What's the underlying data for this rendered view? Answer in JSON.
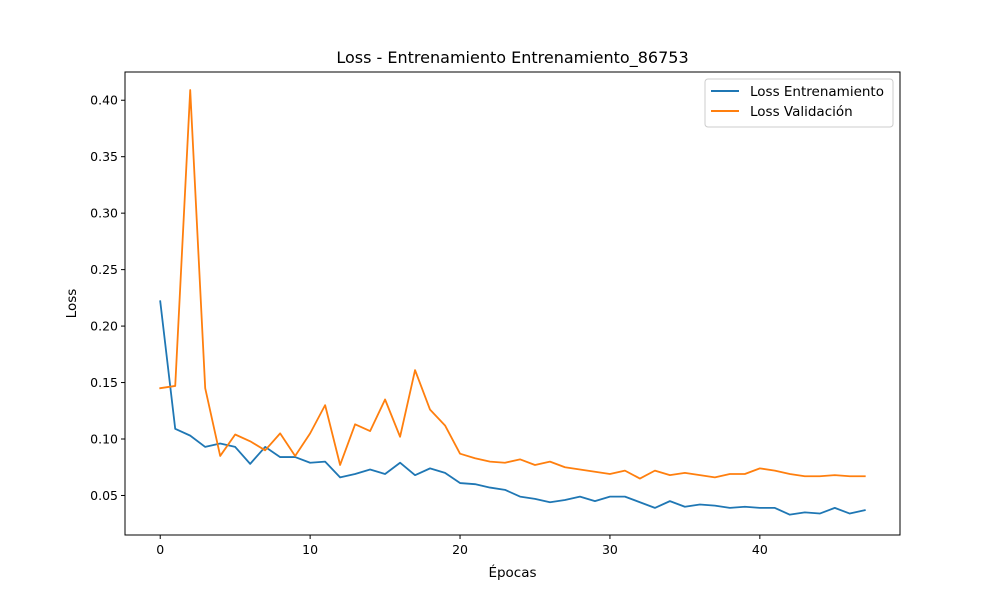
{
  "chart_data": {
    "type": "line",
    "title": "Loss - Entrenamiento Entrenamiento_86753",
    "xlabel": "Épocas",
    "ylabel": "Loss",
    "xlim": [
      -2.35,
      49.35
    ],
    "ylim": [
      0.015,
      0.425
    ],
    "xticks": [
      0,
      10,
      20,
      30,
      40
    ],
    "yticks": [
      0.05,
      0.1,
      0.15,
      0.2,
      0.25,
      0.3,
      0.35,
      0.4
    ],
    "ytick_labels": [
      "0.05",
      "0.10",
      "0.15",
      "0.20",
      "0.25",
      "0.30",
      "0.35",
      "0.40"
    ],
    "grid": false,
    "legend_position": "top-right",
    "series": [
      {
        "name": "Loss Entrenamiento",
        "color": "#1f77b4",
        "values": [
          0.222,
          0.109,
          0.103,
          0.093,
          0.096,
          0.093,
          0.078,
          0.093,
          0.084,
          0.084,
          0.079,
          0.08,
          0.066,
          0.069,
          0.073,
          0.069,
          0.079,
          0.068,
          0.074,
          0.07,
          0.061,
          0.06,
          0.057,
          0.055,
          0.049,
          0.047,
          0.044,
          0.046,
          0.049,
          0.045,
          0.049,
          0.049,
          0.044,
          0.039,
          0.045,
          0.04,
          0.042,
          0.041,
          0.039,
          0.04,
          0.039,
          0.039,
          0.033,
          0.035,
          0.034,
          0.039,
          0.034,
          0.037
        ]
      },
      {
        "name": "Loss Validación",
        "color": "#ff7f0e",
        "values": [
          0.145,
          0.147,
          0.409,
          0.145,
          0.085,
          0.104,
          0.098,
          0.09,
          0.105,
          0.085,
          0.105,
          0.13,
          0.077,
          0.113,
          0.107,
          0.135,
          0.102,
          0.161,
          0.126,
          0.112,
          0.087,
          0.083,
          0.08,
          0.079,
          0.082,
          0.077,
          0.08,
          0.075,
          0.073,
          0.071,
          0.069,
          0.072,
          0.065,
          0.072,
          0.068,
          0.07,
          0.068,
          0.066,
          0.069,
          0.069,
          0.074,
          0.072,
          0.069,
          0.067,
          0.067,
          0.068,
          0.067,
          0.067
        ]
      }
    ]
  }
}
